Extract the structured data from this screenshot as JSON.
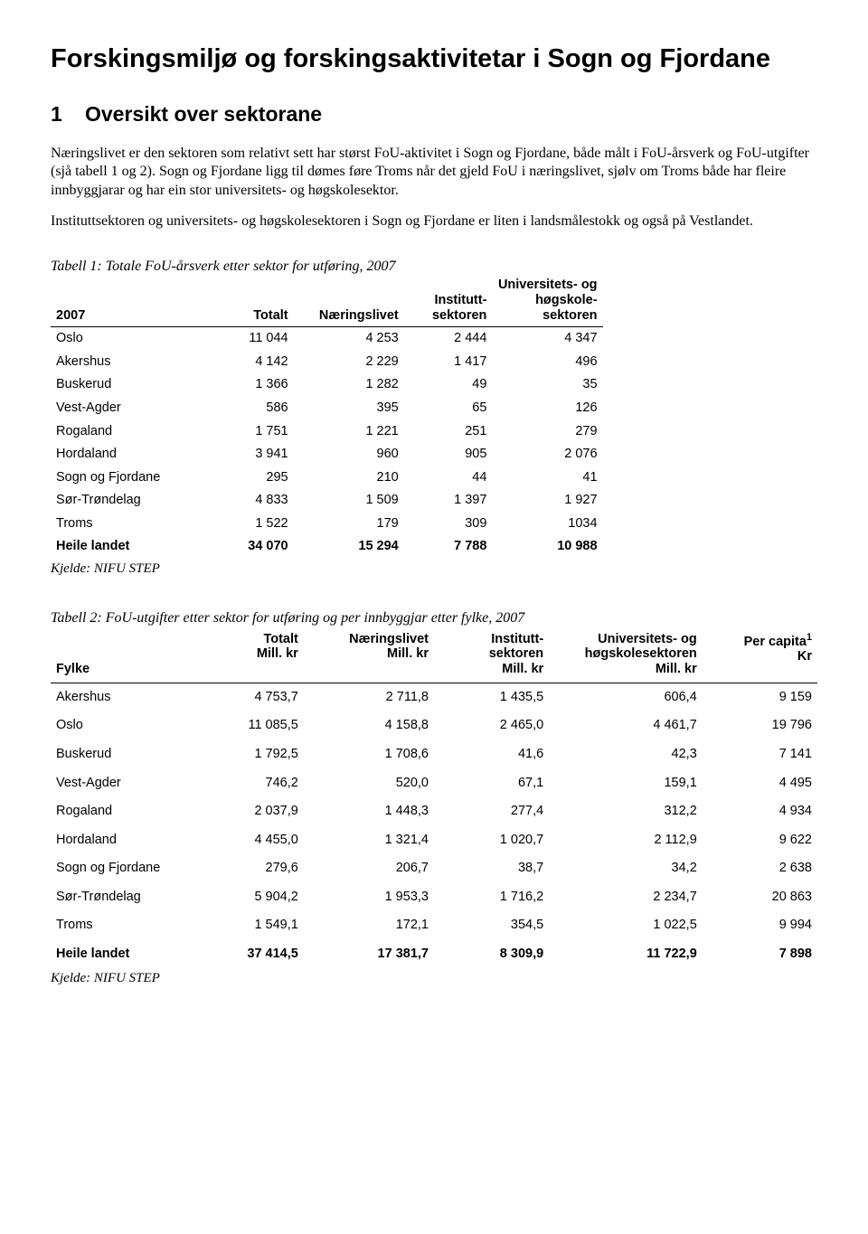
{
  "title": "Forskingsmiljø og forskingsaktivitetar i Sogn og Fjordane",
  "section1": {
    "number": "1",
    "heading": "Oversikt over sektorane"
  },
  "para1": "Næringslivet er den sektoren som relativt sett har størst FoU-aktivitet i Sogn og Fjordane, både målt i FoU-årsverk og FoU-utgifter (sjå tabell 1 og 2). Sogn og Fjordane ligg til dømes føre Troms når det gjeld FoU i næringslivet, sjølv om Troms både har fleire innbyggjarar og har ein stor universitets- og høgskolesektor.",
  "para2": "Instituttsektoren og universitets- og høgskolesektoren i Sogn og Fjordane er liten i landsmålestokk og også på Vestlandet.",
  "table1": {
    "caption": "Tabell 1: Totale FoU-årsverk etter sektor for utføring, 2007",
    "headers": {
      "c0": "2007",
      "c1": "Totalt",
      "c2": "Næringslivet",
      "c3a": "Institutt-",
      "c3b": "sektoren",
      "c4a": "Universitets- og",
      "c4b": "høgskole-",
      "c4c": "sektoren"
    },
    "rows": [
      [
        "Oslo",
        "11 044",
        "4 253",
        "2 444",
        "4 347"
      ],
      [
        "Akershus",
        "4 142",
        "2 229",
        "1 417",
        "496"
      ],
      [
        "Buskerud",
        "1 366",
        "1 282",
        "49",
        "35"
      ],
      [
        "Vest-Agder",
        "586",
        "395",
        "65",
        "126"
      ],
      [
        "Rogaland",
        "1 751",
        "1 221",
        "251",
        "279"
      ],
      [
        "Hordaland",
        "3 941",
        "960",
        "905",
        "2 076"
      ],
      [
        "Sogn og Fjordane",
        "295",
        "210",
        "44",
        "41"
      ],
      [
        "Sør-Trøndelag",
        "4 833",
        "1 509",
        "1 397",
        "1 927"
      ],
      [
        "Troms",
        "1 522",
        "179",
        "309",
        "1034"
      ]
    ],
    "total_row": [
      "Heile landet",
      "34 070",
      "15 294",
      "7 788",
      "10 988"
    ],
    "source": "Kjelde: NIFU STEP"
  },
  "table2": {
    "caption": "Tabell 2: FoU-utgifter etter sektor for utføring og per innbyggjar etter fylke, 2007",
    "headers": {
      "c0": "Fylke",
      "c1a": "Totalt",
      "c1b": "Mill. kr",
      "c2a": "Næringslivet",
      "c2b": "Mill. kr",
      "c3a": "Institutt-",
      "c3b": "sektoren",
      "c3c": "Mill. kr",
      "c4a": "Universitets- og",
      "c4b": "høgskolesektoren",
      "c4c": "Mill. kr",
      "c5a": "Per capita",
      "c5sup": "1",
      "c5b": "Kr"
    },
    "rows": [
      [
        "Akershus",
        "4 753,7",
        "2 711,8",
        "1 435,5",
        "606,4",
        "9 159"
      ],
      [
        "Oslo",
        "11 085,5",
        "4 158,8",
        "2 465,0",
        "4 461,7",
        "19 796"
      ],
      [
        "Buskerud",
        "1 792,5",
        "1 708,6",
        "41,6",
        "42,3",
        "7 141"
      ],
      [
        "Vest-Agder",
        "746,2",
        "520,0",
        "67,1",
        "159,1",
        "4 495"
      ],
      [
        "Rogaland",
        "2 037,9",
        "1 448,3",
        "277,4",
        "312,2",
        "4 934"
      ],
      [
        "Hordaland",
        "4 455,0",
        "1 321,4",
        "1 020,7",
        "2 112,9",
        "9 622"
      ],
      [
        "Sogn og Fjordane",
        "279,6",
        "206,7",
        "38,7",
        "34,2",
        "2 638"
      ],
      [
        "Sør-Trøndelag",
        "5 904,2",
        "1 953,3",
        "1 716,2",
        "2 234,7",
        "20 863"
      ],
      [
        "Troms",
        "1 549,1",
        "172,1",
        "354,5",
        "1 022,5",
        "9 994"
      ]
    ],
    "total_row": [
      "Heile landet",
      "37 414,5",
      "17 381,7",
      "8 309,9",
      "11 722,9",
      "7 898"
    ],
    "source": "Kjelde: NIFU STEP"
  }
}
